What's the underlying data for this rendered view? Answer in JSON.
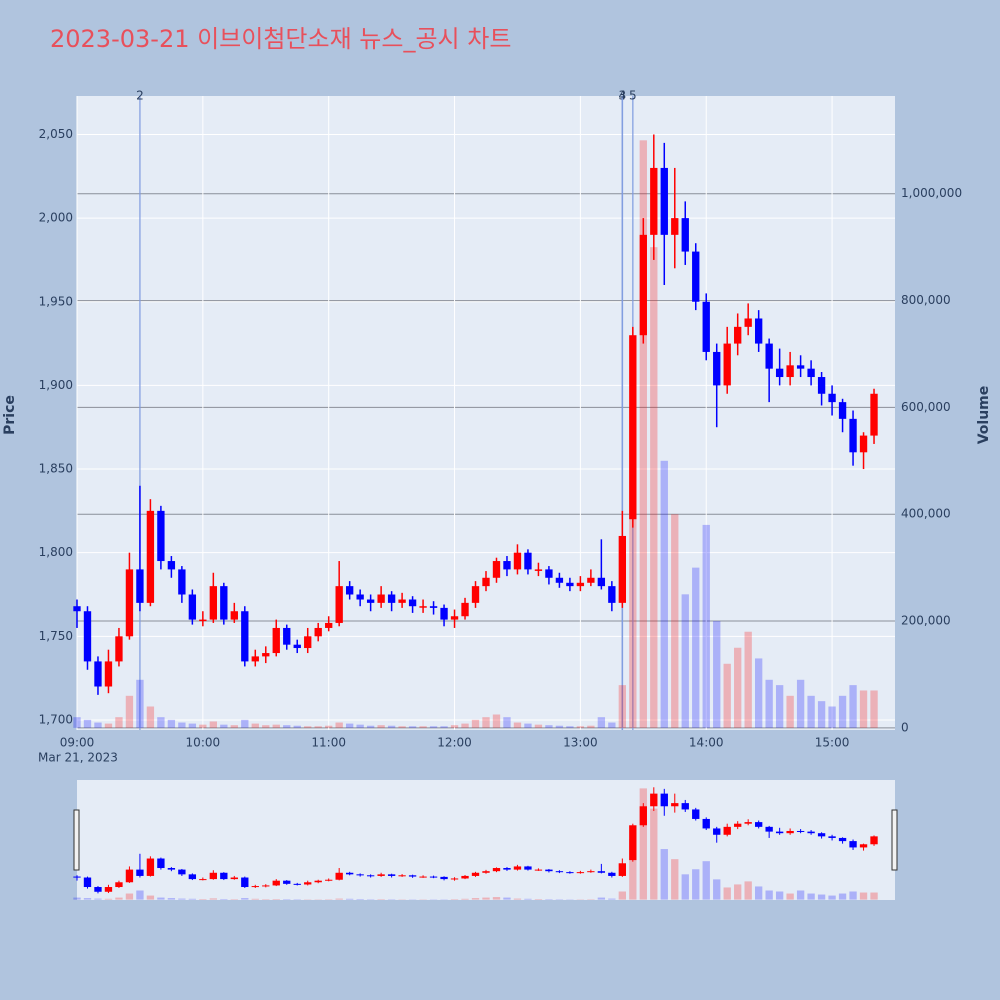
{
  "chart_data": {
    "type": "candlestick",
    "title": "2023-03-21 이브이첨단소재 뉴스_공시 차트",
    "ylabel": "Price",
    "y2label": "Volume",
    "x_date_label": "Mar 21, 2023",
    "up_color": "#ff0000",
    "down_color": "#0000ff",
    "xlim": [
      "09:00",
      "15:30"
    ],
    "xticks": [
      "09:00",
      "10:00",
      "11:00",
      "12:00",
      "13:00",
      "14:00",
      "15:00"
    ],
    "ylim": [
      1694,
      2073
    ],
    "yticks": [
      {
        "value": 1700,
        "label": "1,700"
      },
      {
        "value": 1750,
        "label": "1,750"
      },
      {
        "value": 1800,
        "label": "1,800"
      },
      {
        "value": 1850,
        "label": "1,850"
      },
      {
        "value": 1900,
        "label": "1,900"
      },
      {
        "value": 1950,
        "label": "1,950"
      },
      {
        "value": 2000,
        "label": "2,000"
      },
      {
        "value": 2050,
        "label": "2,050"
      }
    ],
    "y2lim": [
      -4000,
      1183000
    ],
    "y2ticks": [
      0,
      {
        "value": 200000,
        "label": "200,000"
      },
      {
        "value": 400000,
        "label": "400,000"
      },
      {
        "value": 600000,
        "label": "600,000"
      },
      {
        "value": 800000,
        "label": "800,000"
      },
      {
        "value": 1000000,
        "label": "1,000,000"
      }
    ],
    "annotations": [
      {
        "x": "09:30",
        "text": "2"
      },
      {
        "x": "13:20",
        "text": "3"
      },
      {
        "x": "13:20",
        "text": "4"
      },
      {
        "x": "13:25",
        "text": "5"
      }
    ],
    "x": [
      "09:00",
      "09:05",
      "09:10",
      "09:15",
      "09:20",
      "09:25",
      "09:30",
      "09:35",
      "09:40",
      "09:45",
      "09:50",
      "09:55",
      "10:00",
      "10:05",
      "10:10",
      "10:15",
      "10:20",
      "10:25",
      "10:30",
      "10:35",
      "10:40",
      "10:45",
      "10:50",
      "10:55",
      "11:00",
      "11:05",
      "11:10",
      "11:15",
      "11:20",
      "11:25",
      "11:30",
      "11:35",
      "11:40",
      "11:45",
      "11:50",
      "11:55",
      "12:00",
      "12:05",
      "12:10",
      "12:15",
      "12:20",
      "12:25",
      "12:30",
      "12:35",
      "12:40",
      "12:45",
      "12:50",
      "12:55",
      "13:00",
      "13:05",
      "13:10",
      "13:15",
      "13:20",
      "13:25",
      "13:30",
      "13:35",
      "13:40",
      "13:45",
      "13:50",
      "13:55",
      "14:00",
      "14:05",
      "14:10",
      "14:15",
      "14:20",
      "14:25",
      "14:30",
      "14:35",
      "14:40",
      "14:45",
      "14:50",
      "14:55",
      "15:00",
      "15:05",
      "15:10",
      "15:15",
      "15:20"
    ],
    "open": [
      1768,
      1765,
      1735,
      1720,
      1735,
      1750,
      1790,
      1770,
      1825,
      1795,
      1790,
      1775,
      1760,
      1760,
      1780,
      1760,
      1765,
      1735,
      1738,
      1740,
      1755,
      1745,
      1743,
      1750,
      1755,
      1758,
      1780,
      1775,
      1772,
      1770,
      1775,
      1770,
      1772,
      1768,
      1768,
      1767,
      1760,
      1762,
      1770,
      1780,
      1785,
      1795,
      1790,
      1800,
      1790,
      1790,
      1785,
      1782,
      1780,
      1782,
      1785,
      1780,
      1770,
      1820,
      1930,
      1990,
      2030,
      1990,
      2000,
      1980,
      1950,
      1920,
      1900,
      1925,
      1935,
      1940,
      1925,
      1910,
      1905,
      1912,
      1910,
      1905,
      1895,
      1890,
      1880,
      1860,
      1870
    ],
    "high": [
      1772,
      1768,
      1738,
      1742,
      1755,
      1800,
      1840,
      1832,
      1828,
      1798,
      1792,
      1778,
      1765,
      1788,
      1782,
      1770,
      1768,
      1742,
      1744,
      1760,
      1757,
      1748,
      1755,
      1758,
      1762,
      1795,
      1783,
      1778,
      1775,
      1780,
      1777,
      1776,
      1774,
      1772,
      1771,
      1769,
      1766,
      1773,
      1783,
      1789,
      1797,
      1798,
      1805,
      1802,
      1794,
      1792,
      1788,
      1785,
      1786,
      1790,
      1808,
      1783,
      1825,
      1935,
      2000,
      2050,
      2045,
      2030,
      2010,
      1985,
      1955,
      1925,
      1935,
      1943,
      1949,
      1945,
      1928,
      1922,
      1920,
      1918,
      1915,
      1908,
      1900,
      1892,
      1885,
      1872,
      1898
    ],
    "low": [
      1755,
      1730,
      1715,
      1716,
      1732,
      1748,
      1765,
      1768,
      1790,
      1785,
      1770,
      1757,
      1756,
      1758,
      1757,
      1758,
      1732,
      1732,
      1734,
      1738,
      1742,
      1740,
      1740,
      1747,
      1753,
      1756,
      1772,
      1768,
      1765,
      1767,
      1765,
      1767,
      1764,
      1764,
      1763,
      1756,
      1755,
      1760,
      1767,
      1777,
      1782,
      1786,
      1787,
      1787,
      1786,
      1781,
      1779,
      1777,
      1777,
      1780,
      1778,
      1765,
      1767,
      1815,
      1925,
      1975,
      1960,
      1970,
      1972,
      1945,
      1915,
      1875,
      1895,
      1918,
      1930,
      1920,
      1890,
      1900,
      1900,
      1905,
      1900,
      1888,
      1882,
      1872,
      1852,
      1850,
      1865
    ],
    "close": [
      1765,
      1735,
      1720,
      1735,
      1750,
      1790,
      1770,
      1825,
      1795,
      1790,
      1775,
      1760,
      1760,
      1780,
      1760,
      1765,
      1735,
      1738,
      1740,
      1755,
      1745,
      1743,
      1750,
      1755,
      1758,
      1780,
      1775,
      1772,
      1770,
      1775,
      1770,
      1772,
      1768,
      1768,
      1767,
      1760,
      1762,
      1770,
      1780,
      1785,
      1795,
      1790,
      1800,
      1790,
      1790,
      1785,
      1782,
      1780,
      1782,
      1785,
      1780,
      1770,
      1810,
      1930,
      1990,
      2030,
      1990,
      2000,
      1980,
      1950,
      1920,
      1900,
      1925,
      1935,
      1940,
      1925,
      1910,
      1905,
      1912,
      1910,
      1905,
      1895,
      1890,
      1880,
      1860,
      1870,
      1895
    ],
    "volume": [
      20000,
      15000,
      10000,
      8000,
      20000,
      60000,
      90000,
      40000,
      20000,
      15000,
      10000,
      8000,
      6000,
      12000,
      6000,
      5000,
      15000,
      8000,
      5000,
      6000,
      5000,
      4000,
      3000,
      3000,
      4000,
      10000,
      8000,
      6000,
      4000,
      5000,
      4000,
      3000,
      3000,
      3000,
      3000,
      3000,
      5000,
      8000,
      15000,
      20000,
      25000,
      20000,
      10000,
      8000,
      6000,
      5000,
      4000,
      3000,
      3000,
      4000,
      20000,
      10000,
      80000,
      600000,
      1100000,
      900000,
      500000,
      400000,
      250000,
      300000,
      380000,
      200000,
      120000,
      150000,
      180000,
      130000,
      90000,
      80000,
      60000,
      90000,
      60000,
      50000,
      40000,
      60000,
      80000,
      70000,
      70000
    ]
  }
}
